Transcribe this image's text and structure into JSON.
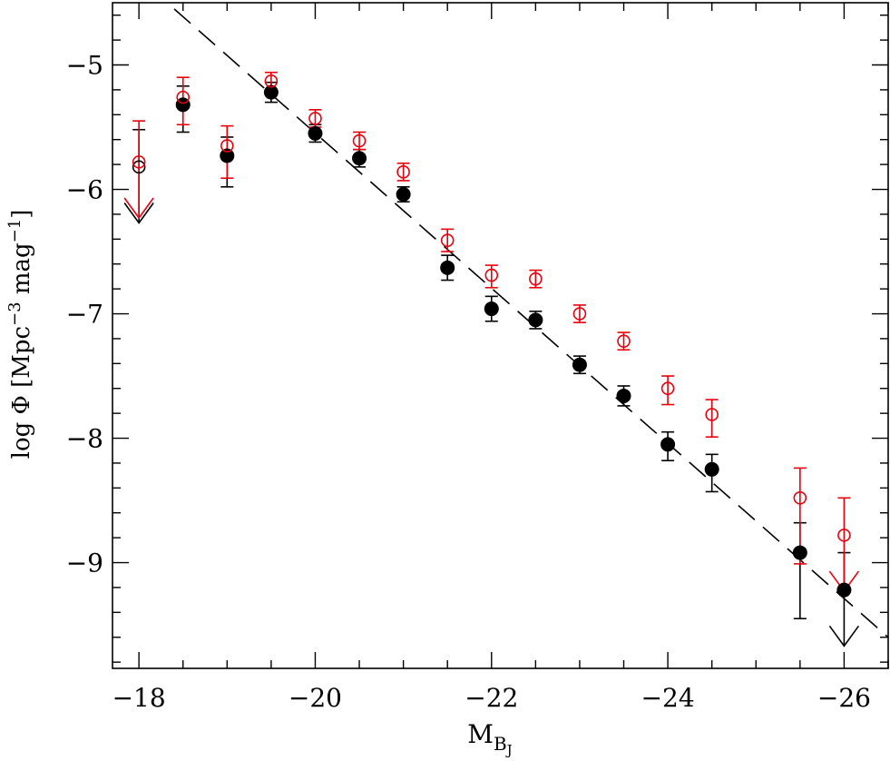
{
  "chart_data": {
    "type": "scatter",
    "xlabel": "M",
    "xlabel_sub": "B",
    "xlabel_subsub": "J",
    "ylabel_prefix": "log Φ  [Mpc",
    "ylabel_sup1": "−3",
    "ylabel_mid": " mag",
    "ylabel_sup2": "−1",
    "ylabel_suffix": "]",
    "xlim": [
      -17.7,
      -26.5
    ],
    "ylim": [
      -4.5,
      -9.85
    ],
    "x_major_ticks": [
      -18,
      -20,
      -22,
      -24,
      -26
    ],
    "x_tick_labels": [
      "−18",
      "−20",
      "−22",
      "−24",
      "−26"
    ],
    "y_major_ticks": [
      -5,
      -6,
      -7,
      -8,
      -9
    ],
    "y_tick_labels": [
      "−5",
      "−6",
      "−7",
      "−8",
      "−9"
    ],
    "x_minor_step": 0.5,
    "y_minor_step": 0.2,
    "grid": false,
    "colors": {
      "filled": "#000000",
      "open": "#e8000b",
      "fit_line": "#000000",
      "axes": "#000000"
    },
    "fit_line": {
      "style": "dashed",
      "points": [
        [
          -18.4,
          -4.55
        ],
        [
          -26.5,
          -9.6
        ]
      ]
    },
    "series": [
      {
        "marker": "filled-circle",
        "color": "#000000",
        "points": [
          {
            "x": -18.5,
            "y": -5.32,
            "err_lo": 0.22,
            "err_hi": 0.15
          },
          {
            "x": -19.0,
            "y": -5.73,
            "err_lo": 0.25,
            "err_hi": 0.15
          },
          {
            "x": -19.5,
            "y": -5.22,
            "err_lo": 0.08,
            "err_hi": 0.08
          },
          {
            "x": -20.0,
            "y": -5.55,
            "err_lo": 0.07,
            "err_hi": 0.07
          },
          {
            "x": -20.5,
            "y": -5.75,
            "err_lo": 0.07,
            "err_hi": 0.07
          },
          {
            "x": -21.0,
            "y": -6.04,
            "err_lo": 0.06,
            "err_hi": 0.06
          },
          {
            "x": -21.5,
            "y": -6.63,
            "err_lo": 0.1,
            "err_hi": 0.1
          },
          {
            "x": -22.0,
            "y": -6.96,
            "err_lo": 0.1,
            "err_hi": 0.1
          },
          {
            "x": -22.5,
            "y": -7.05,
            "err_lo": 0.07,
            "err_hi": 0.07
          },
          {
            "x": -23.0,
            "y": -7.41,
            "err_lo": 0.07,
            "err_hi": 0.07
          },
          {
            "x": -23.5,
            "y": -7.66,
            "err_lo": 0.08,
            "err_hi": 0.08
          },
          {
            "x": -24.0,
            "y": -8.05,
            "err_lo": 0.13,
            "err_hi": 0.1
          },
          {
            "x": -24.5,
            "y": -8.25,
            "err_lo": 0.18,
            "err_hi": 0.12
          },
          {
            "x": -25.5,
            "y": -8.92,
            "err_lo": 0.53,
            "err_hi": 0.24
          }
        ]
      },
      {
        "marker": "open-circle",
        "color": "#000000",
        "points": [
          {
            "x": -18.0,
            "y": -5.82,
            "err_lo": 0,
            "err_hi": 0.3,
            "upper_limit": true
          }
        ]
      },
      {
        "marker": "filled-circle",
        "color": "#000000",
        "points": [
          {
            "x": -26.0,
            "y": -9.22,
            "err_lo": 0,
            "err_hi": 0.3,
            "upper_limit": true
          }
        ]
      },
      {
        "marker": "open-circle",
        "color": "#e8000b",
        "points": [
          {
            "x": -18.0,
            "y": -5.78,
            "err_lo": 0,
            "err_hi": 0.33,
            "upper_limit": true
          },
          {
            "x": -18.5,
            "y": -5.26,
            "err_lo": 0.22,
            "err_hi": 0.16
          },
          {
            "x": -19.0,
            "y": -5.65,
            "err_lo": 0.26,
            "err_hi": 0.16
          },
          {
            "x": -19.5,
            "y": -5.13,
            "err_lo": 0.08,
            "err_hi": 0.07
          },
          {
            "x": -20.0,
            "y": -5.43,
            "err_lo": 0.07,
            "err_hi": 0.07
          },
          {
            "x": -20.5,
            "y": -5.61,
            "err_lo": 0.07,
            "err_hi": 0.07
          },
          {
            "x": -21.0,
            "y": -5.86,
            "err_lo": 0.07,
            "err_hi": 0.07
          },
          {
            "x": -21.5,
            "y": -6.41,
            "err_lo": 0.09,
            "err_hi": 0.09
          },
          {
            "x": -22.0,
            "y": -6.69,
            "err_lo": 0.1,
            "err_hi": 0.08
          },
          {
            "x": -22.5,
            "y": -6.72,
            "err_lo": 0.07,
            "err_hi": 0.07
          },
          {
            "x": -23.0,
            "y": -7.0,
            "err_lo": 0.07,
            "err_hi": 0.07
          },
          {
            "x": -23.5,
            "y": -7.22,
            "err_lo": 0.07,
            "err_hi": 0.07
          },
          {
            "x": -24.0,
            "y": -7.6,
            "err_lo": 0.13,
            "err_hi": 0.1
          },
          {
            "x": -24.5,
            "y": -7.81,
            "err_lo": 0.18,
            "err_hi": 0.12
          },
          {
            "x": -25.5,
            "y": -8.48,
            "err_lo": 0.53,
            "err_hi": 0.24
          },
          {
            "x": -26.0,
            "y": -8.78,
            "err_lo": 0,
            "err_hi": 0.3,
            "upper_limit": true
          }
        ]
      }
    ]
  }
}
